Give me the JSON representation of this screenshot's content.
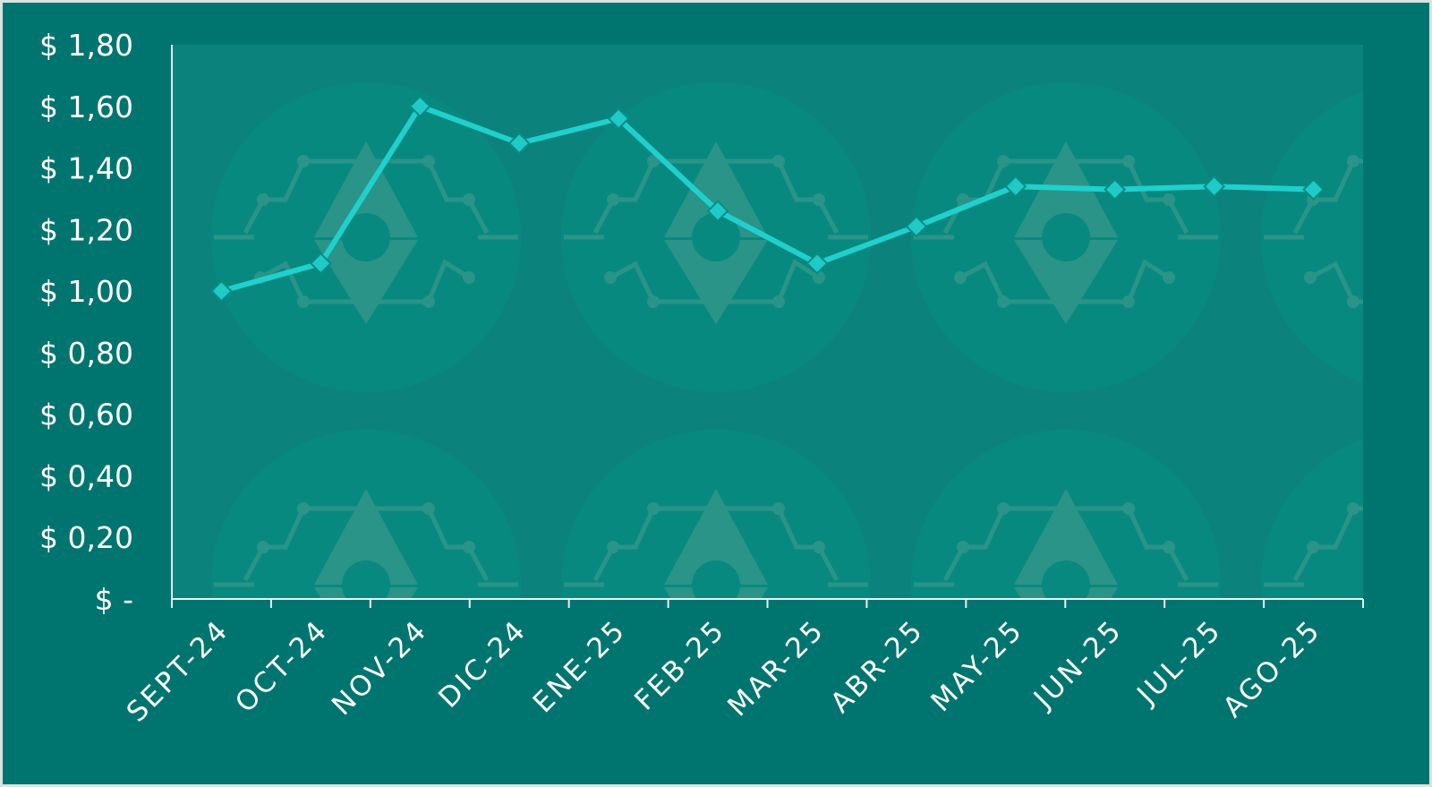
{
  "colors": {
    "frame_bg": "#00756f",
    "plot_bg": "#0b837c",
    "watermark_circle": "#08897f",
    "watermark_shape": "#2a9489",
    "axis": "#e8f1f0",
    "line": "#1fd0cd",
    "marker_fill": "#1fcac7",
    "marker_stroke": "#0a8c86",
    "text": "#ffffff"
  },
  "chart_data": {
    "type": "line",
    "title": "",
    "xlabel": "",
    "ylabel": "",
    "categories": [
      "SEPT-24",
      "OCT-24",
      "NOV-24",
      "DIC-24",
      "ENE-25",
      "FEB-25",
      "MAR-25",
      "ABR-25",
      "MAY-25",
      "JUN-25",
      "JUL-25",
      "AGO-25"
    ],
    "series": [
      {
        "values": [
          1.0,
          1.09,
          1.6,
          1.48,
          1.56,
          1.26,
          1.09,
          1.21,
          1.34,
          1.33,
          1.34,
          1.33
        ],
        "marker": "diamond"
      }
    ],
    "ylim": [
      0,
      1.8
    ],
    "yticks": [
      0,
      0.2,
      0.4,
      0.6,
      0.8,
      1.0,
      1.2,
      1.4,
      1.6,
      1.8
    ],
    "ytick_labels": [
      "$ -",
      "$ 0,20",
      "$ 0,40",
      "$ 0,60",
      "$ 0,80",
      "$ 1,00",
      "$ 1,20",
      "$ 1,40",
      "$ 1,60",
      "$ 1,80"
    ],
    "grid": false,
    "legend": "none",
    "background_watermark": "repeated-logo"
  }
}
